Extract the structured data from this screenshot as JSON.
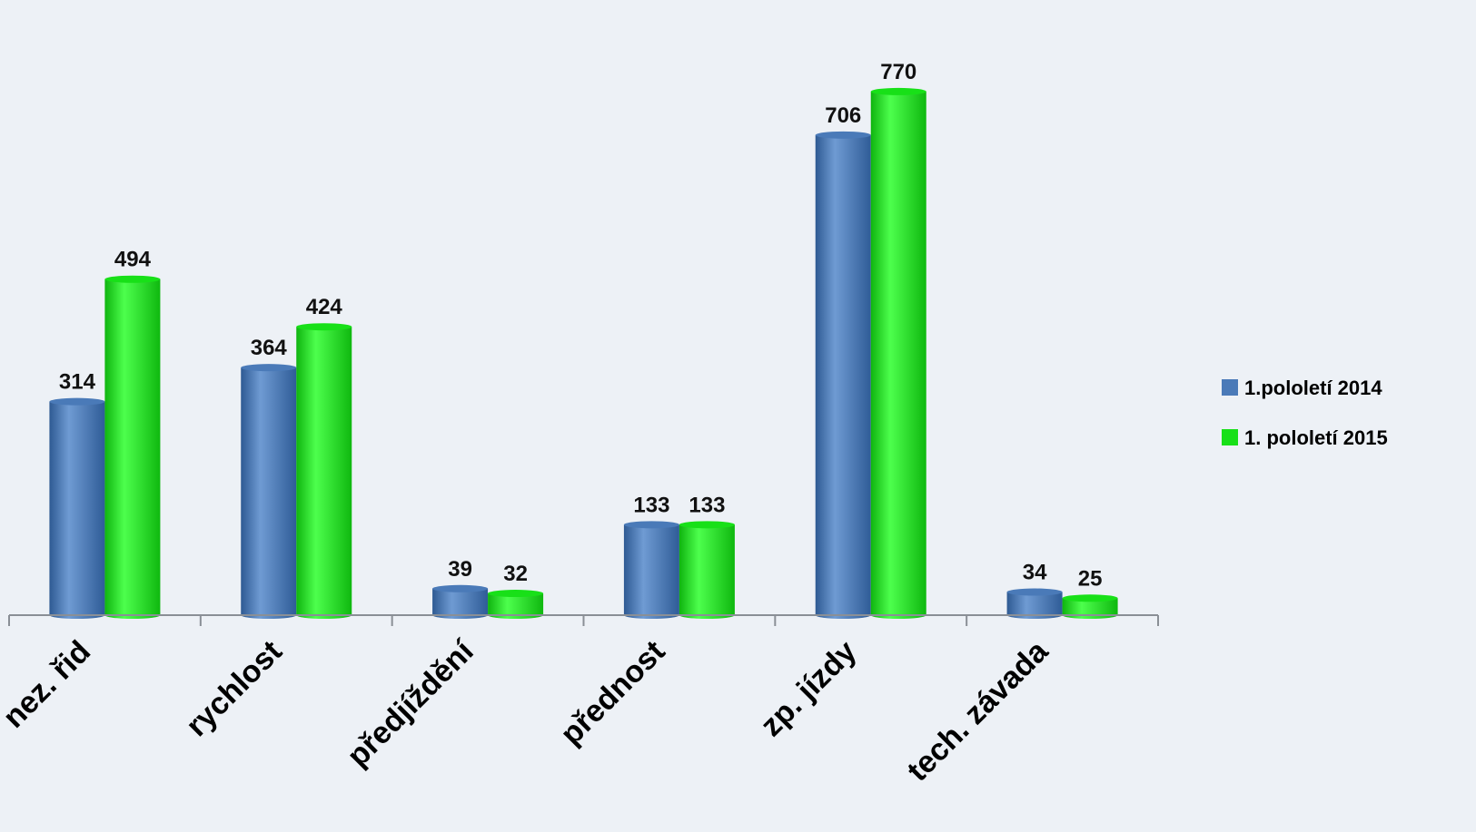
{
  "chart_data": {
    "type": "bar",
    "categories": [
      "nez. řid",
      "rychlost",
      "předjíždění",
      "přednost",
      "zp. jízdy",
      "tech. závada"
    ],
    "series": [
      {
        "name": "1.pololetí 2014",
        "values": [
          314,
          364,
          39,
          133,
          706,
          34
        ],
        "color": "#4a7ab8"
      },
      {
        "name": "1. pololetí 2015",
        "values": [
          494,
          424,
          32,
          133,
          770,
          25
        ],
        "color": "#18e018"
      }
    ],
    "ylim": [
      0,
      800
    ],
    "grid": false,
    "legend_position": "right",
    "data_labels": true
  }
}
